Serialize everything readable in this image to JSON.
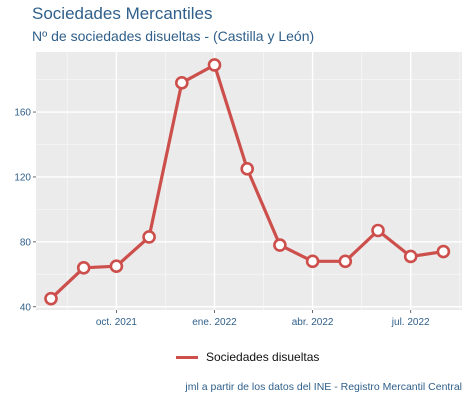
{
  "header": {
    "title": "Sociedades Mercantiles",
    "subtitle": "Nº de sociedades disueltas - (Castilla y León)"
  },
  "caption": "jml a partir de los datos del INE - Registro Mercantil Central",
  "colors": {
    "line": "#cd4f4c",
    "panel": "#ebebeb",
    "text": "#2f5f8a"
  },
  "chart_data": {
    "type": "line",
    "title": "Sociedades Mercantiles",
    "subtitle": "Nº de sociedades disueltas - (Castilla y León)",
    "x": [
      "2021-08",
      "2021-09",
      "2021-10",
      "2021-11",
      "2021-12",
      "2022-01",
      "2022-02",
      "2022-03",
      "2022-04",
      "2022-05",
      "2022-06",
      "2022-07",
      "2022-08"
    ],
    "series": [
      {
        "name": "Sociedades disueltas",
        "values": [
          45,
          64,
          65,
          83,
          178,
          189,
          125,
          78,
          68,
          68,
          87,
          71,
          74
        ]
      }
    ],
    "xticks": [
      {
        "x": "2021-10",
        "label": "oct. 2021"
      },
      {
        "x": "2022-01",
        "label": "ene. 2022"
      },
      {
        "x": "2022-04",
        "label": "abr. 2022"
      },
      {
        "x": "2022-07",
        "label": "jul. 2022"
      }
    ],
    "yticks": [
      40,
      80,
      120,
      160
    ],
    "ylim": [
      38,
      197
    ],
    "xlabel": "",
    "ylabel": "",
    "grid": true,
    "legend": "bottom",
    "markers": "open-circle"
  }
}
